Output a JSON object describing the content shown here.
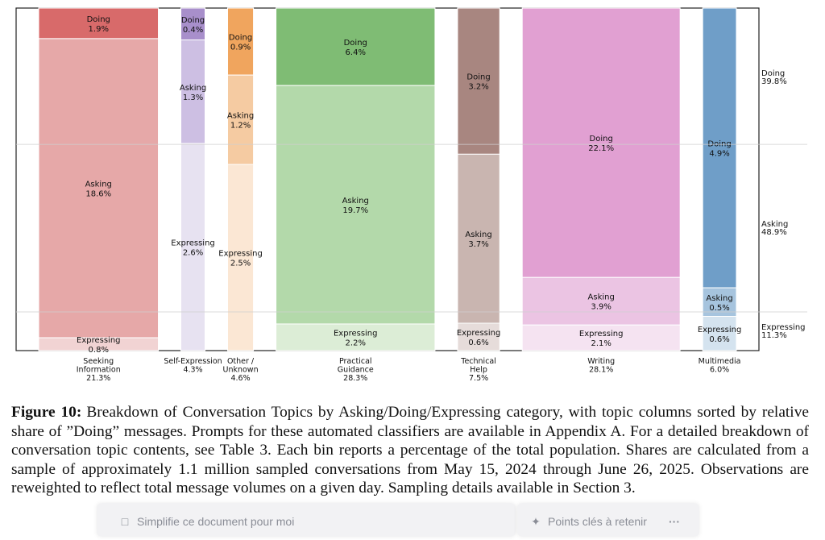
{
  "chart_data": {
    "type": "marimekko",
    "title": "",
    "columns": [
      {
        "label": [
          "Seeking",
          "Information",
          "21.3%"
        ],
        "share": 21.3,
        "segments": [
          {
            "name": "Doing",
            "value": 1.9
          },
          {
            "name": "Asking",
            "value": 18.6
          },
          {
            "name": "Expressing",
            "value": 0.8
          }
        ],
        "colors": [
          "#d86a6a",
          "#e6a8a8",
          "#f1d3d3"
        ]
      },
      {
        "label": [
          "Self-Expression",
          "4.3%"
        ],
        "share": 4.3,
        "segments": [
          {
            "name": "Doing",
            "value": 0.4
          },
          {
            "name": "Asking",
            "value": 1.3
          },
          {
            "name": "Expressing",
            "value": 2.6
          }
        ],
        "colors": [
          "#a88fcb",
          "#cdbfe3",
          "#e7e2f1"
        ]
      },
      {
        "label": [
          "Other /",
          "Unknown",
          "4.6%"
        ],
        "share": 4.6,
        "segments": [
          {
            "name": "Doing",
            "value": 0.9
          },
          {
            "name": "Asking",
            "value": 1.2
          },
          {
            "name": "Expressing",
            "value": 2.5
          }
        ],
        "colors": [
          "#f0a55e",
          "#f5cba2",
          "#fbe7d4"
        ]
      },
      {
        "label": [
          "Practical",
          "Guidance",
          "28.3%"
        ],
        "share": 28.3,
        "segments": [
          {
            "name": "Doing",
            "value": 6.4
          },
          {
            "name": "Asking",
            "value": 19.7
          },
          {
            "name": "Expressing",
            "value": 2.2
          }
        ],
        "colors": [
          "#7fbc74",
          "#b3d9aa",
          "#dcedd6"
        ]
      },
      {
        "label": [
          "Technical",
          "Help",
          "7.5%"
        ],
        "share": 7.5,
        "segments": [
          {
            "name": "Doing",
            "value": 3.2
          },
          {
            "name": "Asking",
            "value": 3.7
          },
          {
            "name": "Expressing",
            "value": 0.6
          }
        ],
        "colors": [
          "#a88680",
          "#c9b5b0",
          "#e6dcda"
        ]
      },
      {
        "label": [
          "Writing",
          "28.1%"
        ],
        "share": 28.1,
        "segments": [
          {
            "name": "Doing",
            "value": 22.1
          },
          {
            "name": "Asking",
            "value": 3.9
          },
          {
            "name": "Expressing",
            "value": 2.1
          }
        ],
        "colors": [
          "#e1a0d2",
          "#ebc4e3",
          "#f5e3f1"
        ]
      },
      {
        "label": [
          "Multimedia",
          "6.0%"
        ],
        "share": 6.0,
        "segments": [
          {
            "name": "Doing",
            "value": 4.9
          },
          {
            "name": "Asking",
            "value": 0.5
          },
          {
            "name": "Expressing",
            "value": 0.6
          }
        ],
        "colors": [
          "#6f9ec8",
          "#a6c4de",
          "#d4e3ef"
        ]
      }
    ],
    "totals": [
      {
        "name": "Doing",
        "value": "39.8%"
      },
      {
        "name": "Asking",
        "value": "48.9%"
      },
      {
        "name": "Expressing",
        "value": "11.3%"
      }
    ],
    "ylim": [
      0,
      100
    ],
    "reference_lines_pct": [
      39.8,
      88.7
    ]
  },
  "caption": {
    "lead": "Figure 10:",
    "text": "Breakdown of Conversation Topics by Asking/Doing/Expressing category, with topic columns sorted by relative share of ”Doing” messages. Prompts for these automated classifiers are available in Appendix A. For a detailed breakdown of conversation topic contents, see Table 3. Each bin reports a percentage of the total population. Shares are calculated from a sample of approximately 1.1 million sampled conversations from May 15, 2024 through June 26, 2025. Observations are reweighted to reflect total message volumes on a given day. Sampling details available in Section 3."
  },
  "overlay": {
    "left_text": "Simplifie ce document pour moi",
    "right_text": "Points clés à retenir",
    "more_label": "···",
    "left_icon": "chat-icon",
    "right_icon": "sparkle-icon"
  }
}
